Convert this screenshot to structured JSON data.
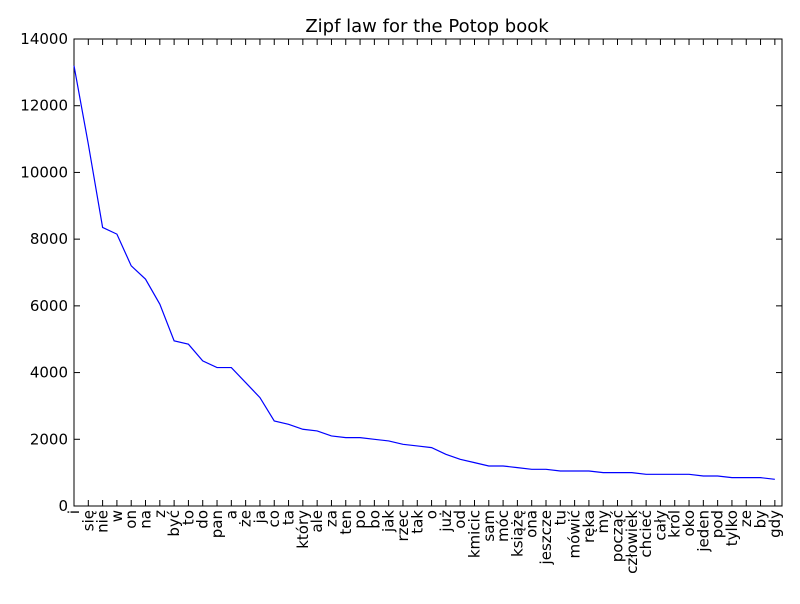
{
  "chart_data": {
    "type": "line",
    "title": "Zipf law for the Potop book",
    "xlabel": "",
    "ylabel": "",
    "ylim": [
      0,
      14000
    ],
    "yticks": [
      0,
      2000,
      4000,
      6000,
      8000,
      10000,
      12000,
      14000
    ],
    "grid": false,
    "line_color": "#0000ff",
    "categories": [
      "i",
      "się",
      "nie",
      "w",
      "on",
      "na",
      "z",
      "być",
      "to",
      "do",
      "pan",
      "a",
      "że",
      "ja",
      "co",
      "ta",
      "który",
      "ale",
      "za",
      "ten",
      "po",
      "bo",
      "jak",
      "rzec",
      "tak",
      "o",
      "już",
      "od",
      "kmicic",
      "sam",
      "móc",
      "książę",
      "ona",
      "jeszcze",
      "tu",
      "mówić",
      "ręka",
      "my",
      "począć",
      "człowiek",
      "chcieć",
      "cały",
      "król",
      "oko",
      "jeden",
      "pod",
      "tylko",
      "ze",
      "by",
      "gdy"
    ],
    "values": [
      13200,
      10850,
      8350,
      8150,
      7200,
      6800,
      6050,
      4950,
      4850,
      4350,
      4150,
      4150,
      3700,
      3250,
      2550,
      2450,
      2300,
      2250,
      2100,
      2050,
      2050,
      2000,
      1950,
      1850,
      1800,
      1750,
      1550,
      1400,
      1300,
      1200,
      1200,
      1150,
      1100,
      1100,
      1050,
      1050,
      1050,
      1000,
      1000,
      1000,
      950,
      950,
      950,
      950,
      900,
      900,
      850,
      850,
      850,
      800
    ]
  }
}
